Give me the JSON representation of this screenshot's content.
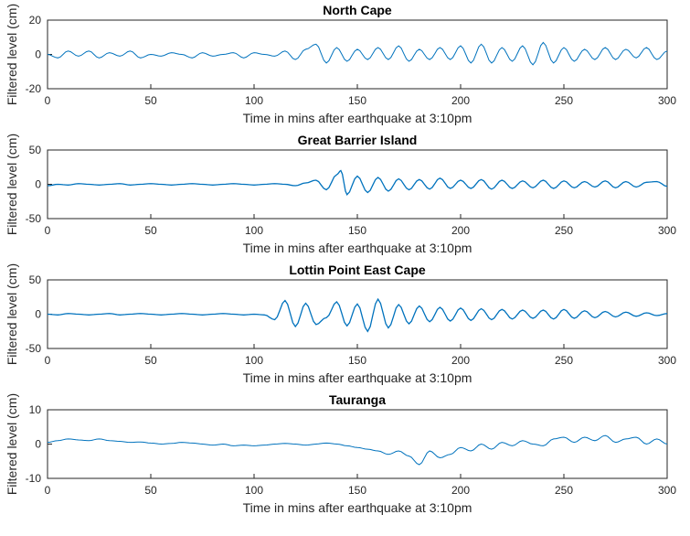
{
  "chart_data": [
    {
      "type": "line",
      "title": "North Cape",
      "xlabel": "Time in mins after earthquake at 3:10pm",
      "ylabel": "Filtered level (cm)",
      "xlim": [
        0,
        300
      ],
      "ylim": [
        -20,
        20
      ],
      "xticks": [
        "0",
        "50",
        "100",
        "150",
        "200",
        "250",
        "300"
      ],
      "yticks": [
        "20",
        "0",
        "-20"
      ],
      "grid": false,
      "color": "#0072BD",
      "series": [
        {
          "x": [
            0,
            5,
            10,
            15,
            20,
            25,
            30,
            35,
            40,
            45,
            50,
            55,
            60,
            65,
            70,
            75,
            80,
            85,
            90,
            95,
            100,
            105,
            110,
            115,
            120,
            125,
            130,
            135,
            140,
            145,
            150,
            155,
            160,
            165,
            170,
            175,
            180,
            185,
            190,
            195,
            200,
            205,
            210,
            215,
            220,
            225,
            230,
            235,
            240,
            245,
            250,
            255,
            260,
            265,
            270,
            275,
            280,
            285,
            290,
            295,
            300
          ],
          "y": [
            0,
            -2,
            2,
            -1,
            2,
            -2,
            1,
            -1,
            2,
            -2,
            0,
            -1,
            1,
            0,
            -2,
            1,
            -1,
            0,
            1,
            -2,
            1,
            0,
            -1,
            2,
            -3,
            3,
            6,
            -5,
            4,
            -4,
            3,
            -3,
            4,
            -3,
            5,
            -4,
            3,
            -3,
            4,
            -3,
            5,
            -5,
            6,
            -5,
            4,
            -4,
            5,
            -6,
            7,
            -5,
            4,
            -4,
            3,
            -3,
            4,
            -3,
            3,
            -2,
            4,
            -3,
            2
          ]
        }
      ]
    },
    {
      "type": "line",
      "title": "Great Barrier Island",
      "xlabel": "Time in mins after earthquake at 3:10pm",
      "ylabel": "Filtered level (cm)",
      "xlim": [
        0,
        300
      ],
      "ylim": [
        -50,
        50
      ],
      "xticks": [
        "0",
        "50",
        "100",
        "150",
        "200",
        "250",
        "300"
      ],
      "yticks": [
        "50",
        "0",
        "-50"
      ],
      "grid": false,
      "color": "#0072BD",
      "series": [
        {
          "x": [
            0,
            5,
            10,
            15,
            20,
            25,
            30,
            35,
            40,
            45,
            50,
            55,
            60,
            65,
            70,
            75,
            80,
            85,
            90,
            95,
            100,
            105,
            110,
            115,
            120,
            125,
            130,
            135,
            140,
            142,
            145,
            150,
            155,
            160,
            165,
            170,
            175,
            180,
            185,
            190,
            195,
            200,
            205,
            210,
            215,
            220,
            225,
            230,
            235,
            240,
            245,
            250,
            255,
            260,
            265,
            270,
            275,
            280,
            285,
            290,
            295,
            300
          ],
          "y": [
            -2,
            0,
            -1,
            1,
            0,
            -1,
            0,
            1,
            -1,
            0,
            1,
            0,
            -1,
            0,
            1,
            0,
            -1,
            0,
            1,
            0,
            -1,
            0,
            1,
            0,
            -2,
            2,
            6,
            -8,
            14,
            20,
            -15,
            12,
            -12,
            10,
            -10,
            8,
            -8,
            7,
            -7,
            9,
            -6,
            6,
            -6,
            7,
            -7,
            6,
            -6,
            5,
            -5,
            6,
            -6,
            5,
            -5,
            4,
            -4,
            5,
            -5,
            4,
            -4,
            3,
            4,
            -3
          ]
        }
      ]
    },
    {
      "type": "line",
      "title": "Lottin Point East Cape",
      "xlabel": "Time in mins after earthquake at 3:10pm",
      "ylabel": "Filtered level (cm)",
      "xlim": [
        0,
        300
      ],
      "ylim": [
        -50,
        50
      ],
      "xticks": [
        "0",
        "50",
        "100",
        "150",
        "200",
        "250",
        "300"
      ],
      "yticks": [
        "50",
        "0",
        "-50"
      ],
      "grid": false,
      "color": "#0072BD",
      "series": [
        {
          "x": [
            0,
            5,
            10,
            15,
            20,
            25,
            30,
            35,
            40,
            45,
            50,
            55,
            60,
            65,
            70,
            75,
            80,
            85,
            90,
            95,
            100,
            105,
            110,
            115,
            120,
            125,
            130,
            135,
            140,
            145,
            150,
            155,
            160,
            165,
            170,
            175,
            180,
            185,
            190,
            195,
            200,
            205,
            210,
            215,
            220,
            225,
            230,
            235,
            240,
            245,
            250,
            255,
            260,
            265,
            270,
            275,
            280,
            285,
            290,
            295,
            300
          ],
          "y": [
            0,
            -1,
            1,
            0,
            -1,
            0,
            1,
            -1,
            0,
            1,
            0,
            -1,
            0,
            1,
            0,
            -1,
            0,
            1,
            0,
            -1,
            0,
            -1,
            -8,
            20,
            -18,
            16,
            -15,
            -5,
            18,
            -17,
            15,
            -25,
            22,
            -20,
            14,
            -14,
            12,
            -11,
            10,
            -10,
            9,
            -9,
            8,
            -8,
            7,
            -7,
            6,
            -6,
            6,
            -7,
            7,
            -6,
            5,
            -5,
            4,
            -4,
            3,
            -3,
            2,
            -2,
            1
          ]
        }
      ]
    },
    {
      "type": "line",
      "title": "Tauranga",
      "xlabel": "Time in mins after earthquake at 3:10pm",
      "ylabel": "Filtered level (cm)",
      "xlim": [
        0,
        300
      ],
      "ylim": [
        -10,
        10
      ],
      "xticks": [
        "0",
        "50",
        "100",
        "150",
        "200",
        "250",
        "300"
      ],
      "yticks": [
        "10",
        "0",
        "-10"
      ],
      "grid": false,
      "color": "#0072BD",
      "series": [
        {
          "x": [
            0,
            5,
            10,
            15,
            20,
            25,
            30,
            35,
            40,
            45,
            50,
            55,
            60,
            65,
            70,
            75,
            80,
            85,
            90,
            95,
            100,
            105,
            110,
            115,
            120,
            125,
            130,
            135,
            140,
            145,
            150,
            155,
            160,
            165,
            170,
            175,
            180,
            185,
            190,
            195,
            200,
            205,
            210,
            215,
            220,
            225,
            230,
            235,
            240,
            245,
            250,
            255,
            260,
            265,
            270,
            275,
            280,
            285,
            290,
            295,
            300
          ],
          "y": [
            0.5,
            1,
            1.5,
            1.2,
            1,
            1.5,
            1,
            0.8,
            0.5,
            0.6,
            0.3,
            0,
            0.2,
            0.5,
            0.3,
            0,
            -0.3,
            0,
            -0.5,
            -0.3,
            -0.5,
            -0.3,
            0,
            0.2,
            0,
            -0.3,
            0,
            0.3,
            0,
            -0.5,
            -1,
            -1.5,
            -2,
            -3,
            -2,
            -3.5,
            -6,
            -2,
            -4,
            -3,
            -1,
            -2,
            0,
            -1.5,
            0.5,
            -0.5,
            1,
            0,
            -0.5,
            1.5,
            2,
            0.5,
            2,
            1,
            2.5,
            0.5,
            1.5,
            2,
            0,
            1.5,
            0
          ]
        }
      ]
    }
  ]
}
